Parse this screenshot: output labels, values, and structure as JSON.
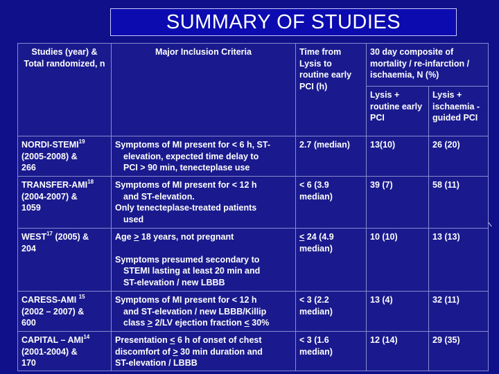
{
  "slide": {
    "title": "SUMMARY OF STUDIES",
    "colors": {
      "background": "#10108a",
      "title_bg": "#0b0bb0",
      "cell_bg": "#1a1a8e",
      "text": "#ffffff"
    }
  },
  "headers": {
    "studies": "Studies (year) & Total randomized, n",
    "criteria": "Major Inclusion Criteria",
    "time": "Time from Lysis to routine early PCI (h)",
    "outcome": "30 day composite of mortality / re-infarction / ischaemia, N (%)",
    "sub_routine": "Lysis + routine early PCI",
    "sub_guided": "Lysis + ischaemia -guided PCI"
  },
  "rows": [
    {
      "name": "NORDI-STEMI",
      "ref": "19",
      "years": "(2005-2008) &",
      "n": "266",
      "c1": "Symptoms of MI present for < 6 h, ST-",
      "c2": "elevation, expected time delay to",
      "c3": "PCI > 90 min, tenecteplase use",
      "time": "2.7 (median)",
      "routine": "13(10)",
      "guided": "26 (20)"
    },
    {
      "name": "TRANSFER-AMI",
      "ref": "18",
      "years": "(2004-2007) &",
      "n": "1059",
      "c1": "Symptoms of MI present for < 12 h",
      "c2": "and ST-elevation.",
      "c3": "Only tenecteplase-treated patients",
      "c4": "used",
      "time": "< 6 (3.9 median)",
      "routine": "39 (7)",
      "guided": "58 (11)"
    },
    {
      "name": "WEST",
      "ref": "17",
      "years": "(2005) &",
      "n": "204",
      "c1_pre": "Age ",
      "c1_u": ">",
      "c1_post": " 18 years, not pregnant",
      "c2": "Symptoms presumed secondary to",
      "c3": "STEMI lasting at least 20 min and",
      "c4": "ST-elevation / new LBBB",
      "time_u": "<",
      "time_rest": " 24 (4.9 median)",
      "routine": "10 (10)",
      "guided": "13 (13)"
    },
    {
      "name": "CARESS-AMI",
      "ref": "15",
      "years": "(2002 – 2007) &",
      "n": "600",
      "c1": "Symptoms of MI present for < 12 h",
      "c2": "and ST-elevation / new LBBB/Killip",
      "c3_pre": "class ",
      "c3_u1": ">",
      "c3_mid": " 2/LV ejection fraction ",
      "c3_u2": "<",
      "c3_post": " 30%",
      "time": "< 3 (2.2 median)",
      "routine": "13 (4)",
      "guided": "32 (11)"
    },
    {
      "name": "CAPITAL – AMI",
      "ref": "14",
      "years": "(2001-2004) &",
      "n": "170",
      "c1_pre": "Presentation ",
      "c1_u": "<",
      "c1_post": " 6 h of onset of chest",
      "c2_pre": "discomfort of ",
      "c2_u": ">",
      "c2_post": " 30 min duration and",
      "c3": "ST-elevation / LBBB",
      "time": "< 3 (1.6 median)",
      "routine": "12 (14)",
      "guided": "29 (35)"
    }
  ]
}
